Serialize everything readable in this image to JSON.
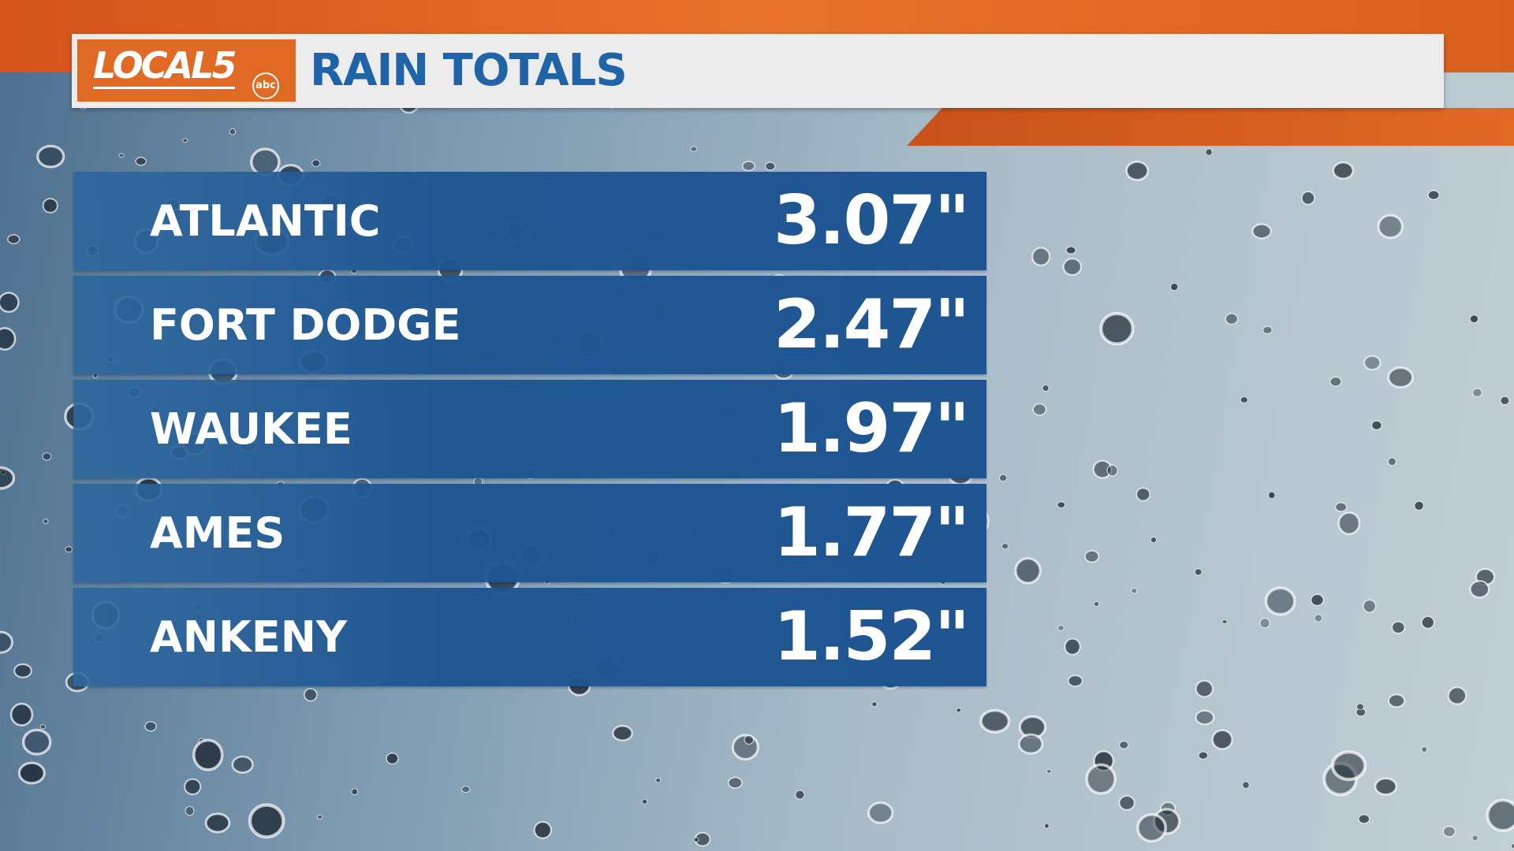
{
  "header": {
    "logo": "LOCAL5",
    "network": "abc",
    "title": "RAIN TOTALS"
  },
  "table": {
    "rows": [
      [
        "ATLANTIC",
        "3.07\""
      ],
      [
        "FORT DODGE",
        "2.47\""
      ],
      [
        "WAUKEE",
        "1.97\""
      ],
      [
        "AMES",
        "1.77\""
      ],
      [
        "ANKENY",
        "1.52\""
      ]
    ]
  }
}
